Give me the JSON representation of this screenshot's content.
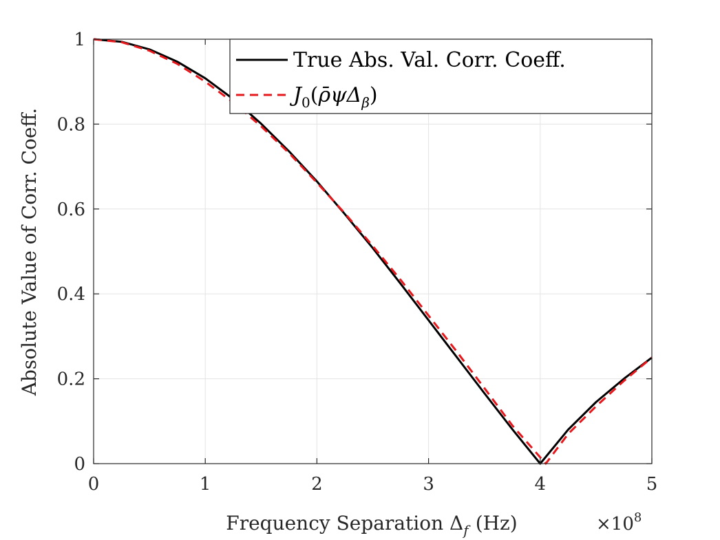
{
  "chart_data": {
    "type": "line",
    "title": "",
    "xlabel": "Frequency Separation Δ",
    "xlabel_sub": "f",
    "xlabel_units": "(Hz)",
    "ylabel": "Absolute Value of Corr. Coeff.",
    "x_multiplier": "×10",
    "x_multiplier_exp": "8",
    "xlim": [
      0,
      5
    ],
    "ylim": [
      0,
      1
    ],
    "xticks": [
      0,
      1,
      2,
      3,
      4,
      5
    ],
    "xtick_labels": [
      "0",
      "1",
      "2",
      "3",
      "4",
      "5"
    ],
    "yticks": [
      0,
      0.2,
      0.4,
      0.6,
      0.8,
      1
    ],
    "ytick_labels": [
      "0",
      "0.2",
      "0.4",
      "0.6",
      "0.8",
      "1"
    ],
    "grid": true,
    "legend_position": "top-right",
    "series": [
      {
        "name": "True Abs. Val. Corr. Coeff.",
        "style": "solid",
        "color": "#000000",
        "x": [
          0,
          0.25,
          0.5,
          0.75,
          1.0,
          1.25,
          1.5,
          1.75,
          2.0,
          2.25,
          2.5,
          2.75,
          3.0,
          3.25,
          3.5,
          3.75,
          4.0,
          4.25,
          4.5,
          4.75,
          5.0
        ],
        "y": [
          1.0,
          0.994,
          0.976,
          0.947,
          0.908,
          0.859,
          0.801,
          0.736,
          0.665,
          0.588,
          0.508,
          0.424,
          0.338,
          0.252,
          0.166,
          0.081,
          0.0,
          0.08,
          0.145,
          0.2,
          0.25
        ]
      },
      {
        "name": "J0(ρ̄ψΔβ)",
        "style": "dashed",
        "color": "#e8171b",
        "x": [
          0,
          0.25,
          0.5,
          0.75,
          1.0,
          1.25,
          1.5,
          1.75,
          2.0,
          2.25,
          2.5,
          2.75,
          3.0,
          3.25,
          3.5,
          3.75,
          4.05,
          4.25,
          4.5,
          4.75,
          5.0
        ],
        "y": [
          1.0,
          0.993,
          0.973,
          0.942,
          0.9,
          0.851,
          0.795,
          0.732,
          0.662,
          0.59,
          0.513,
          0.433,
          0.349,
          0.265,
          0.178,
          0.09,
          0.0,
          0.07,
          0.135,
          0.195,
          0.25
        ]
      }
    ],
    "legend": {
      "entry1": "True Abs. Val. Corr. Coeff.",
      "entry2_J": "J",
      "entry2_sub0": "0",
      "entry2_open": "(",
      "entry2_rho": "ρ̄ψΔ",
      "entry2_beta": "β",
      "entry2_close": ")"
    }
  }
}
